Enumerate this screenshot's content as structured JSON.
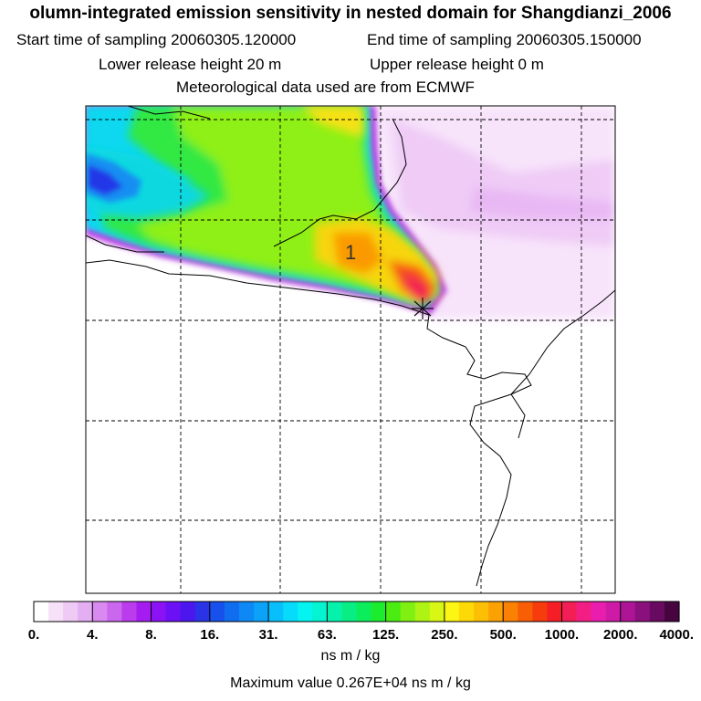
{
  "header": {
    "title": "olumn-integrated emission sensitivity in nested domain for Shangdianzi_2006",
    "start_time_label": "Start time of sampling 20060305.120000",
    "end_time_label": "End time of sampling 20060305.150000",
    "lower_release_label": "Lower release height   20 m",
    "upper_release_label": "Upper release height    0 m",
    "met_data_label": "Meteorological data used are from ECMWF"
  },
  "map": {
    "marker_label": "1",
    "receptor_symbol": "✳"
  },
  "colorbar": {
    "tick_labels": [
      "0.",
      "4.",
      "8.",
      "16.",
      "31.",
      "63.",
      "125.",
      "250.",
      "500.",
      "1000.",
      "2000.",
      "4000."
    ],
    "colors": [
      "#ffffff",
      "#f6e1f9",
      "#eecaf5",
      "#e3aef2",
      "#d88af0",
      "#cb66ee",
      "#bb3ced",
      "#a51cf0",
      "#8a12f5",
      "#6c10f5",
      "#4c16ef",
      "#2a33e6",
      "#1750ea",
      "#116df0",
      "#0e88f5",
      "#0ba2f8",
      "#08bffb",
      "#07dbfb",
      "#05f4f1",
      "#04f3d0",
      "#05f1ac",
      "#08ee85",
      "#0ced5b",
      "#1bec2e",
      "#4aec12",
      "#7ff012",
      "#aef314",
      "#d9f715",
      "#fdf513",
      "#fdd908",
      "#fdbf06",
      "#fba104",
      "#fa8104",
      "#f85e06",
      "#f63b0c",
      "#f51e26",
      "#f31e55",
      "#f21e84",
      "#ea1eae",
      "#cf1aa8",
      "#ad1596",
      "#8a107d",
      "#680a5f",
      "#470540"
    ],
    "units": "ns m / kg"
  },
  "footer": {
    "max_value_label": "Maximum value  0.267E+04 ns m / kg"
  }
}
